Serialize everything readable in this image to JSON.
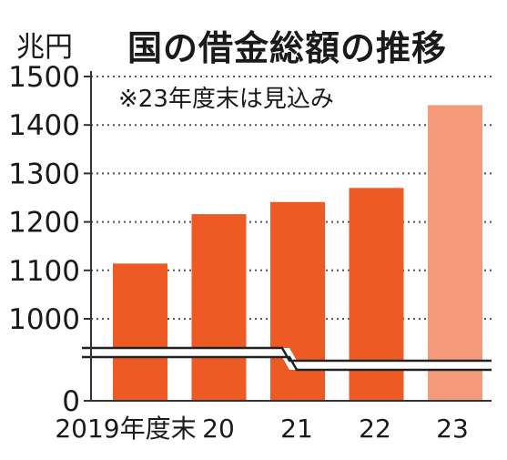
{
  "chart_data": {
    "type": "bar",
    "title": "国の借金総額の推移",
    "unit_label": "兆円",
    "note": "※23年度末は見込み",
    "categories": [
      "2019年度末",
      "20",
      "21",
      "22",
      "23"
    ],
    "values": [
      1114,
      1216,
      1241,
      1270,
      1441
    ],
    "estimated": [
      false,
      false,
      false,
      false,
      true
    ],
    "y_ticks": [
      "1500",
      "1400",
      "1300",
      "1200",
      "1100",
      "1000",
      "0"
    ],
    "y_tick_values": [
      1500,
      1400,
      1300,
      1200,
      1100,
      1000,
      0
    ],
    "ylim": [
      950,
      1500
    ],
    "axis_break": true,
    "grid": true,
    "colors": {
      "actual": "#ee5a24",
      "estimate": "#f4997a",
      "grid": "#555555",
      "axis": "#333333"
    }
  }
}
